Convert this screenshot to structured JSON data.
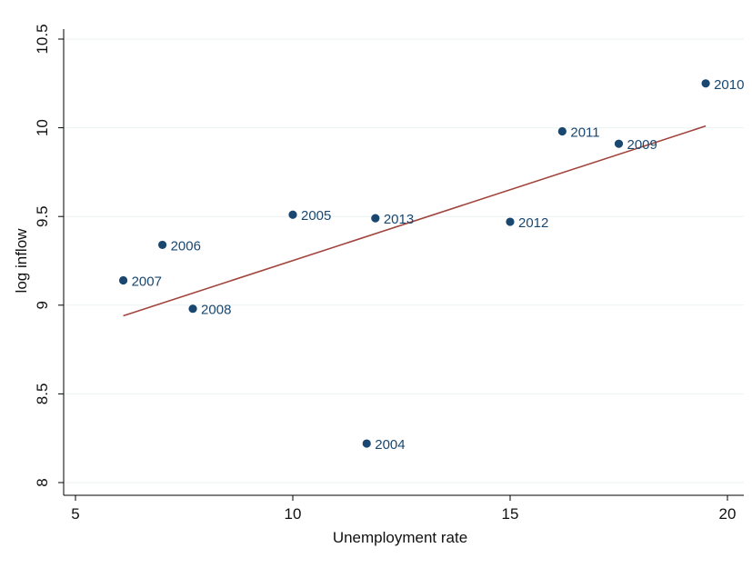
{
  "chart_data": {
    "type": "scatter",
    "title": "",
    "xlabel": "Unemployment rate",
    "ylabel": "log inflow",
    "xlim": [
      5,
      20
    ],
    "ylim": [
      8,
      10.5
    ],
    "x_ticks": [
      5,
      10,
      15,
      20
    ],
    "y_ticks": [
      8,
      8.5,
      9,
      9.5,
      10,
      10.5
    ],
    "y_tick_labels": [
      "8",
      "8.5",
      "9",
      "9.5",
      "10",
      "10.5"
    ],
    "grid": true,
    "legend": "none",
    "series": [
      {
        "points": [
          {
            "x": 11.7,
            "y": 8.22,
            "label": "2004"
          },
          {
            "x": 10.0,
            "y": 9.51,
            "label": "2005"
          },
          {
            "x": 7.0,
            "y": 9.34,
            "label": "2006"
          },
          {
            "x": 6.1,
            "y": 9.14,
            "label": "2007"
          },
          {
            "x": 7.7,
            "y": 8.98,
            "label": "2008"
          },
          {
            "x": 17.5,
            "y": 9.91,
            "label": "2009"
          },
          {
            "x": 19.5,
            "y": 10.25,
            "label": "2010"
          },
          {
            "x": 16.2,
            "y": 9.98,
            "label": "2011"
          },
          {
            "x": 15.0,
            "y": 9.47,
            "label": "2012"
          },
          {
            "x": 11.9,
            "y": 9.49,
            "label": "2013"
          }
        ],
        "color": "#1a476f"
      }
    ],
    "fit_line": {
      "x": [
        6.1,
        19.5
      ],
      "y": [
        8.94,
        10.01
      ],
      "color": "#a0443c"
    }
  }
}
